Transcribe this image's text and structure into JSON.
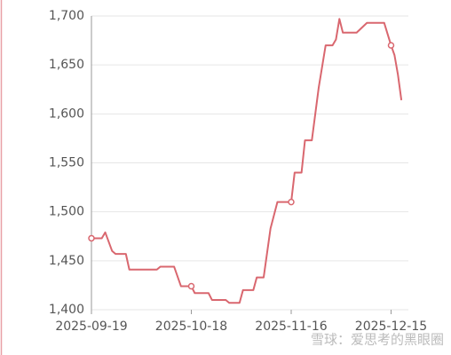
{
  "chart_data": {
    "type": "line",
    "color": "#d9676f",
    "x": [
      "2025-09-19",
      "2025-09-22",
      "2025-09-23",
      "2025-09-25",
      "2025-09-26",
      "2025-09-29",
      "2025-09-30",
      "2025-10-08",
      "2025-10-09",
      "2025-10-13",
      "2025-10-15",
      "2025-10-18",
      "2025-10-19",
      "2025-10-23",
      "2025-10-24",
      "2025-10-28",
      "2025-10-29",
      "2025-11-01",
      "2025-11-02",
      "2025-11-05",
      "2025-11-06",
      "2025-11-08",
      "2025-11-10",
      "2025-11-12",
      "2025-11-16",
      "2025-11-17",
      "2025-11-19",
      "2025-11-20",
      "2025-11-22",
      "2025-11-24",
      "2025-11-26",
      "2025-11-28",
      "2025-11-29",
      "2025-11-30",
      "2025-12-01",
      "2025-12-05",
      "2025-12-08",
      "2025-12-13",
      "2025-12-15",
      "2025-12-16",
      "2025-12-17",
      "2025-12-18"
    ],
    "values": [
      1473,
      1473,
      1479,
      1460,
      1457,
      1457,
      1441,
      1441,
      1444,
      1444,
      1424,
      1424,
      1417,
      1417,
      1410,
      1410,
      1407,
      1407,
      1420,
      1420,
      1433,
      1433,
      1483,
      1510,
      1510,
      1540,
      1540,
      1573,
      1573,
      1627,
      1670,
      1670,
      1676,
      1697,
      1683,
      1683,
      1693,
      1693,
      1670,
      1660,
      1640,
      1614
    ],
    "xlim": [
      "2025-09-19",
      "2025-12-19"
    ],
    "xticks": [
      "2025-09-19",
      "2025-10-18",
      "2025-11-16",
      "2025-12-15"
    ],
    "ylim": [
      1400,
      1700
    ],
    "yticks": [
      {
        "value": 1400,
        "label": "1,400"
      },
      {
        "value": 1450,
        "label": "1,450"
      },
      {
        "value": 1500,
        "label": "1,500"
      },
      {
        "value": 1550,
        "label": "1,550"
      },
      {
        "value": 1600,
        "label": "1,600"
      },
      {
        "value": 1650,
        "label": "1,650"
      },
      {
        "value": 1700,
        "label": "1,700"
      }
    ],
    "grid": true,
    "watermark": "雪球：爱思考的黑眼圈"
  }
}
